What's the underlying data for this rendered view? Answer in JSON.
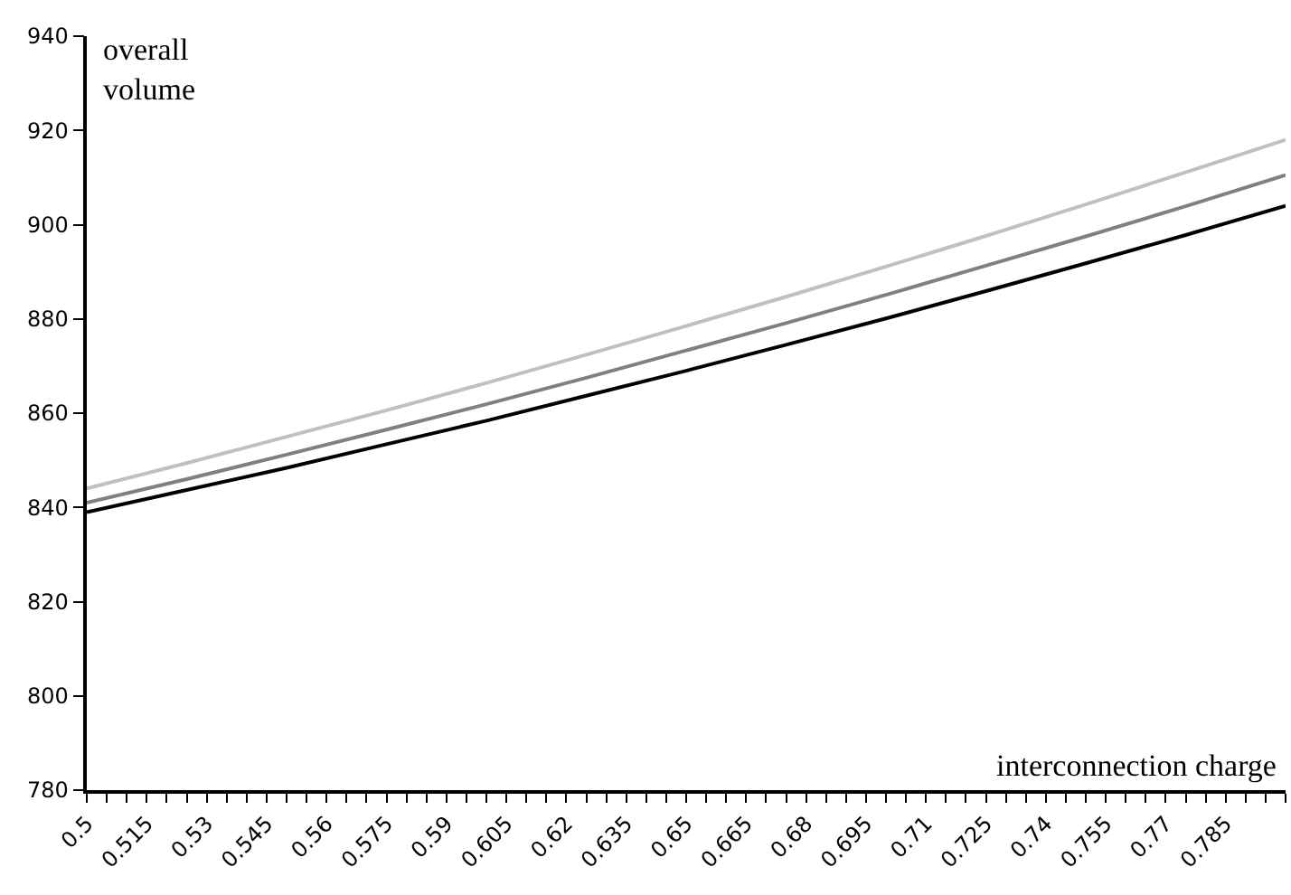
{
  "chart_data": {
    "type": "line",
    "xlabel": "interconnection charge",
    "ylabel": "overall volume",
    "x": [
      0.5,
      0.525,
      0.55,
      0.575,
      0.6,
      0.625,
      0.65,
      0.675,
      0.7,
      0.725,
      0.75,
      0.775,
      0.8
    ],
    "series": [
      {
        "color": "#c0c0c0",
        "values": [
          844,
          849.4,
          855,
          860.6,
          866.4,
          872.4,
          878.5,
          884.7,
          891.1,
          897.6,
          904.3,
          911.1,
          918
        ]
      },
      {
        "color": "#808080",
        "values": [
          841,
          846,
          851.2,
          856.5,
          861.9,
          867.5,
          873.3,
          879.1,
          885.1,
          891.3,
          897.5,
          903.9,
          910.5
        ]
      },
      {
        "color": "#000000",
        "values": [
          839,
          843.7,
          848.4,
          853.4,
          858.4,
          863.7,
          869,
          874.5,
          880.1,
          885.9,
          891.8,
          897.8,
          904
        ]
      }
    ],
    "xlim": [
      0.5,
      0.8
    ],
    "xticks": [
      0.5,
      {
        "value": 0.505,
        "label": null
      },
      {
        "value": 0.51,
        "label": null
      },
      0.515,
      {
        "value": 0.52,
        "label": null
      },
      {
        "value": 0.525,
        "label": null
      },
      0.53,
      {
        "value": 0.535,
        "label": null
      },
      {
        "value": 0.54,
        "label": null
      },
      0.545,
      {
        "value": 0.55,
        "label": null
      },
      {
        "value": 0.555,
        "label": null
      },
      0.56,
      {
        "value": 0.565,
        "label": null
      },
      {
        "value": 0.57,
        "label": null
      },
      0.575,
      {
        "value": 0.58,
        "label": null
      },
      {
        "value": 0.585,
        "label": null
      },
      0.59,
      {
        "value": 0.595,
        "label": null
      },
      {
        "value": 0.6,
        "label": null
      },
      0.605,
      {
        "value": 0.61,
        "label": null
      },
      {
        "value": 0.615,
        "label": null
      },
      0.62,
      {
        "value": 0.625,
        "label": null
      },
      {
        "value": 0.63,
        "label": null
      },
      0.635,
      {
        "value": 0.64,
        "label": null
      },
      {
        "value": 0.645,
        "label": null
      },
      0.65,
      {
        "value": 0.655,
        "label": null
      },
      {
        "value": 0.66,
        "label": null
      },
      0.665,
      {
        "value": 0.67,
        "label": null
      },
      {
        "value": 0.675,
        "label": null
      },
      0.68,
      {
        "value": 0.685,
        "label": null
      },
      {
        "value": 0.69,
        "label": null
      },
      0.695,
      {
        "value": 0.7,
        "label": null
      },
      {
        "value": 0.705,
        "label": null
      },
      0.71,
      {
        "value": 0.715,
        "label": null
      },
      {
        "value": 0.72,
        "label": null
      },
      0.725,
      {
        "value": 0.73,
        "label": null
      },
      {
        "value": 0.735,
        "label": null
      },
      0.74,
      {
        "value": 0.745,
        "label": null
      },
      {
        "value": 0.75,
        "label": null
      },
      0.755,
      {
        "value": 0.76,
        "label": null
      },
      {
        "value": 0.765,
        "label": null
      },
      0.77,
      {
        "value": 0.775,
        "label": null
      },
      {
        "value": 0.78,
        "label": null
      },
      0.785,
      {
        "value": 0.79,
        "label": null
      },
      {
        "value": 0.795,
        "label": null
      },
      {
        "value": 0.8,
        "label": null
      }
    ],
    "ylim": [
      780,
      940
    ],
    "yticks": [
      780,
      800,
      820,
      840,
      860,
      880,
      900,
      920,
      940
    ],
    "grid": false,
    "marker": "none",
    "line_style": "solid"
  }
}
